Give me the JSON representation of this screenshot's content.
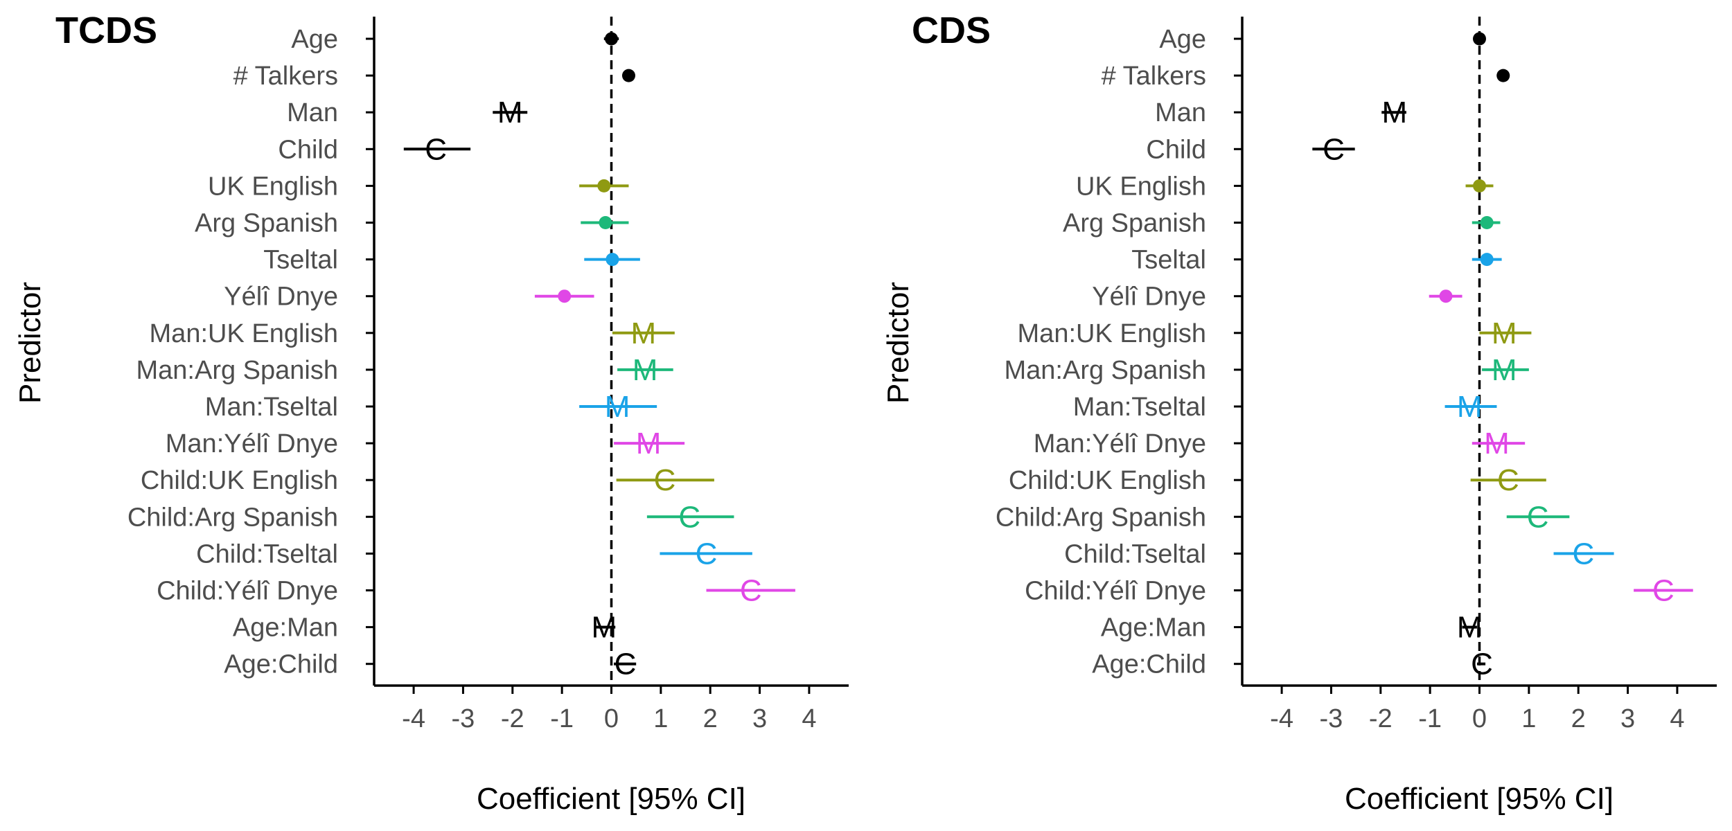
{
  "colors": {
    "Overall": "#000000",
    "UK English": "#8F9A12",
    "Arg Spanish": "#1DB87A",
    "Tseltal": "#1AA3E8",
    "Yélî Dnye": "#E047E6"
  },
  "chart_data": [
    {
      "type": "forest",
      "title": "TCDS",
      "xlabel": "Coefficient [95% CI]",
      "ylabel": "Predictor",
      "xlim": [
        -4.8,
        4.8
      ],
      "xticks": [
        -4,
        -3,
        -2,
        -1,
        0,
        1,
        2,
        3,
        4
      ],
      "reference_line": 0,
      "rows": [
        {
          "label": "Age",
          "est": 0.0,
          "lo": -0.15,
          "hi": 0.15,
          "marker": "dot",
          "group": "Overall"
        },
        {
          "label": "# Talkers",
          "est": 0.35,
          "lo": 0.3,
          "hi": 0.4,
          "marker": "dot",
          "group": "Overall"
        },
        {
          "label": "Man",
          "est": -2.05,
          "lo": -2.4,
          "hi": -1.7,
          "marker": "M",
          "group": "Overall"
        },
        {
          "label": "Child",
          "est": -3.55,
          "lo": -4.2,
          "hi": -2.85,
          "marker": "C",
          "group": "Overall"
        },
        {
          "label": "UK English",
          "est": -0.15,
          "lo": -0.65,
          "hi": 0.35,
          "marker": "dot",
          "group": "UK English"
        },
        {
          "label": "Arg Spanish",
          "est": -0.12,
          "lo": -0.62,
          "hi": 0.35,
          "marker": "dot",
          "group": "Arg Spanish"
        },
        {
          "label": "Tseltal",
          "est": 0.02,
          "lo": -0.55,
          "hi": 0.58,
          "marker": "dot",
          "group": "Tseltal"
        },
        {
          "label": "Yélî Dnye",
          "est": -0.95,
          "lo": -1.55,
          "hi": -0.35,
          "marker": "dot",
          "group": "Yélî Dnye"
        },
        {
          "label": "Man:UK English",
          "est": 0.65,
          "lo": 0.02,
          "hi": 1.28,
          "marker": "M",
          "group": "UK English"
        },
        {
          "label": "Man:Arg Spanish",
          "est": 0.68,
          "lo": 0.12,
          "hi": 1.25,
          "marker": "M",
          "group": "Arg Spanish"
        },
        {
          "label": "Man:Tseltal",
          "est": 0.12,
          "lo": -0.65,
          "hi": 0.92,
          "marker": "M",
          "group": "Tseltal"
        },
        {
          "label": "Man:Yélî Dnye",
          "est": 0.75,
          "lo": 0.05,
          "hi": 1.48,
          "marker": "M",
          "group": "Yélî Dnye"
        },
        {
          "label": "Child:UK English",
          "est": 1.08,
          "lo": 0.1,
          "hi": 2.08,
          "marker": "C",
          "group": "UK English"
        },
        {
          "label": "Child:Arg Spanish",
          "est": 1.58,
          "lo": 0.72,
          "hi": 2.48,
          "marker": "C",
          "group": "Arg Spanish"
        },
        {
          "label": "Child:Tseltal",
          "est": 1.92,
          "lo": 0.98,
          "hi": 2.85,
          "marker": "C",
          "group": "Tseltal"
        },
        {
          "label": "Child:Yélî Dnye",
          "est": 2.82,
          "lo": 1.92,
          "hi": 3.72,
          "marker": "C",
          "group": "Yélî Dnye"
        },
        {
          "label": "Age:Man",
          "est": -0.15,
          "lo": -0.35,
          "hi": 0.08,
          "marker": "M",
          "group": "Overall"
        },
        {
          "label": "Age:Child",
          "est": 0.28,
          "lo": 0.05,
          "hi": 0.5,
          "marker": "C",
          "group": "Overall"
        }
      ]
    },
    {
      "type": "forest",
      "title": "CDS",
      "xlabel": "Coefficient [95% CI]",
      "ylabel": "Predictor",
      "xlim": [
        -4.8,
        4.8
      ],
      "xticks": [
        -4,
        -3,
        -2,
        -1,
        0,
        1,
        2,
        3,
        4
      ],
      "reference_line": 0,
      "rows": [
        {
          "label": "Age",
          "est": 0.0,
          "lo": -0.05,
          "hi": 0.05,
          "marker": "dot",
          "group": "Overall"
        },
        {
          "label": "# Talkers",
          "est": 0.48,
          "lo": 0.43,
          "hi": 0.53,
          "marker": "dot",
          "group": "Overall"
        },
        {
          "label": "Man",
          "est": -1.72,
          "lo": -1.98,
          "hi": -1.48,
          "marker": "M",
          "group": "Overall"
        },
        {
          "label": "Child",
          "est": -2.95,
          "lo": -3.38,
          "hi": -2.52,
          "marker": "C",
          "group": "Overall"
        },
        {
          "label": "UK English",
          "est": 0.0,
          "lo": -0.28,
          "hi": 0.28,
          "marker": "dot",
          "group": "UK English"
        },
        {
          "label": "Arg Spanish",
          "est": 0.15,
          "lo": -0.15,
          "hi": 0.42,
          "marker": "dot",
          "group": "Arg Spanish"
        },
        {
          "label": "Tseltal",
          "est": 0.15,
          "lo": -0.15,
          "hi": 0.45,
          "marker": "dot",
          "group": "Tseltal"
        },
        {
          "label": "Yélî Dnye",
          "est": -0.68,
          "lo": -1.02,
          "hi": -0.35,
          "marker": "dot",
          "group": "Yélî Dnye"
        },
        {
          "label": "Man:UK English",
          "est": 0.5,
          "lo": 0.0,
          "hi": 1.05,
          "marker": "M",
          "group": "UK English"
        },
        {
          "label": "Man:Arg Spanish",
          "est": 0.5,
          "lo": 0.05,
          "hi": 1.0,
          "marker": "M",
          "group": "Arg Spanish"
        },
        {
          "label": "Man:Tseltal",
          "est": -0.2,
          "lo": -0.7,
          "hi": 0.35,
          "marker": "M",
          "group": "Tseltal"
        },
        {
          "label": "Man:Yélî Dnye",
          "est": 0.35,
          "lo": -0.15,
          "hi": 0.92,
          "marker": "M",
          "group": "Yélî Dnye"
        },
        {
          "label": "Child:UK English",
          "est": 0.58,
          "lo": -0.18,
          "hi": 1.35,
          "marker": "C",
          "group": "UK English"
        },
        {
          "label": "Child:Arg Spanish",
          "est": 1.18,
          "lo": 0.55,
          "hi": 1.82,
          "marker": "C",
          "group": "Arg Spanish"
        },
        {
          "label": "Child:Tseltal",
          "est": 2.1,
          "lo": 1.5,
          "hi": 2.72,
          "marker": "C",
          "group": "Tseltal"
        },
        {
          "label": "Child:Yélî Dnye",
          "est": 3.72,
          "lo": 3.12,
          "hi": 4.32,
          "marker": "C",
          "group": "Yélî Dnye"
        },
        {
          "label": "Age:Man",
          "est": -0.2,
          "lo": -0.35,
          "hi": -0.05,
          "marker": "M",
          "group": "Overall"
        },
        {
          "label": "Age:Child",
          "est": 0.05,
          "lo": -0.05,
          "hi": 0.12,
          "marker": "C",
          "group": "Overall"
        }
      ]
    }
  ]
}
